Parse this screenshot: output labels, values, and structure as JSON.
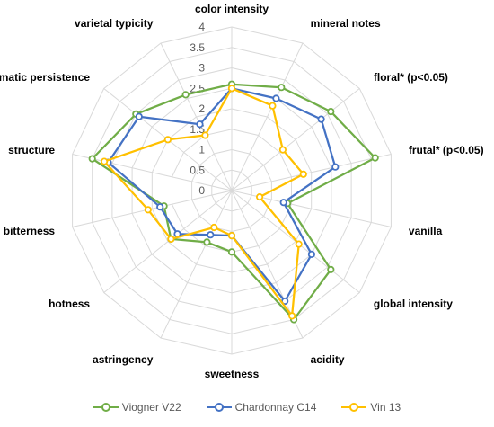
{
  "chart_data": {
    "type": "radar",
    "title": "",
    "axes": [
      "color intensity",
      "mineral notes",
      "floral* (p<0.05)",
      "frutal* (p<0.05)",
      "vanilla",
      "global intensity",
      "acidity",
      "sweetness",
      "astringency",
      "hotness",
      "bitterness",
      "structure",
      "aromatic persistence",
      "varietal typicity"
    ],
    "rlim": [
      0,
      4
    ],
    "ticks": [
      "0",
      "0.5",
      "1",
      "1.5",
      "2",
      "2.5",
      "3",
      "3.5",
      "4"
    ],
    "grid": true,
    "legend_position": "bottom",
    "series": [
      {
        "name": "Viogner V22",
        "color": "#70ad47",
        "values": [
          2.6,
          2.8,
          3.1,
          3.6,
          1.4,
          3.1,
          3.5,
          1.5,
          1.4,
          1.9,
          1.7,
          3.5,
          3.0,
          2.6
        ]
      },
      {
        "name": "Chardonnay C14",
        "color": "#4472c4",
        "values": [
          2.5,
          2.5,
          2.8,
          2.6,
          1.3,
          2.5,
          3.0,
          1.1,
          1.2,
          1.7,
          1.8,
          3.1,
          2.9,
          1.8
        ]
      },
      {
        "name": "Vin 13",
        "color": "#ffc000",
        "values": [
          2.5,
          2.3,
          1.6,
          1.8,
          0.7,
          2.1,
          3.4,
          1.1,
          1.0,
          1.9,
          2.1,
          3.2,
          2.0,
          1.5
        ]
      }
    ]
  }
}
